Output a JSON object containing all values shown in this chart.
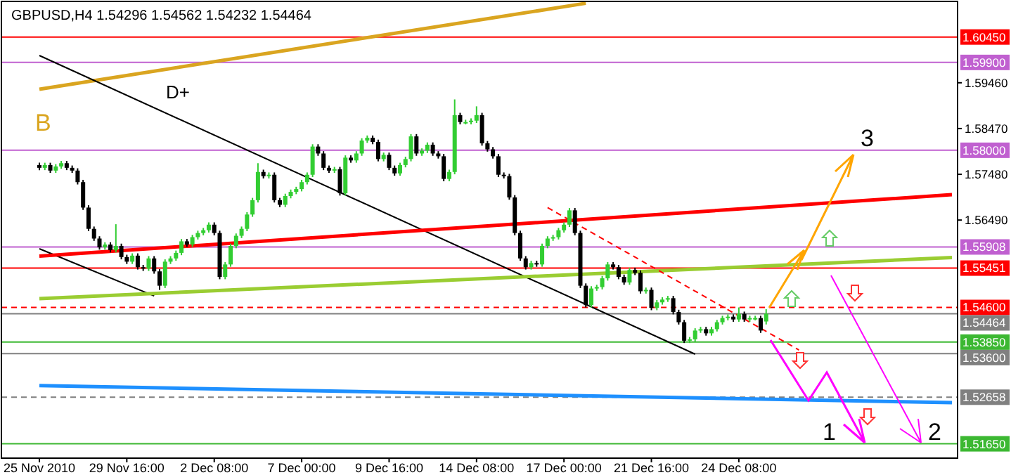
{
  "chart_data": {
    "type": "candlestick",
    "title": "GBPUSD,H4  1.54296 1.54562 1.54232 1.54464",
    "annotations": [
      "B",
      "D+",
      {
        "text": "3",
        "y": 1.58
      },
      {
        "text": "1",
        "y": 1.5165
      },
      {
        "text": "2",
        "y": 1.5165
      }
    ],
    "categories": [
      "25 Nov 2010",
      null,
      null,
      null,
      null,
      null,
      null,
      null,
      null,
      null,
      null,
      null,
      null,
      null,
      null,
      null,
      "29 Nov 16:00",
      null,
      null,
      null,
      null,
      null,
      null,
      null,
      null,
      null,
      null,
      null,
      null,
      null,
      null,
      null,
      "2 Dec 08:00",
      null,
      null,
      null,
      null,
      null,
      null,
      null,
      null,
      null,
      null,
      null,
      null,
      null,
      null,
      null,
      "7 Dec 00:00",
      null,
      null,
      null,
      null,
      null,
      null,
      null,
      null,
      null,
      null,
      null,
      null,
      null,
      null,
      null,
      "9 Dec 16:00",
      null,
      null,
      null,
      null,
      null,
      null,
      null,
      null,
      null,
      null,
      null,
      null,
      null,
      null,
      null,
      "14 Dec 08:00",
      null,
      null,
      null,
      null,
      null,
      null,
      null,
      null,
      null,
      null,
      null,
      null,
      null,
      null,
      null,
      "17 Dec 00:00",
      null,
      null,
      null,
      null,
      null,
      null,
      null,
      null,
      null,
      null,
      null,
      null,
      null,
      null,
      null,
      "21 Dec 16:00",
      null,
      null,
      null,
      null,
      null,
      null,
      null,
      null,
      null,
      null,
      null,
      null,
      null,
      null,
      null,
      "24 Dec 08:00",
      null,
      null,
      null,
      null,
      null,
      null,
      null,
      null,
      null,
      null,
      null,
      null,
      null,
      null,
      null,
      null,
      null,
      null,
      null,
      null,
      null,
      null,
      null,
      null,
      null,
      null,
      null,
      null,
      null,
      null,
      null,
      null,
      null,
      null,
      null,
      null,
      null,
      null,
      null
    ],
    "ohlc": [
      [
        1.5768,
        1.5773,
        1.5757,
        1.5762
      ],
      [
        1.5762,
        1.5773,
        1.5757,
        1.5768
      ],
      [
        1.5768,
        1.5773,
        1.5751,
        1.5756
      ],
      [
        1.5756,
        1.577,
        1.5751,
        1.5765
      ],
      [
        1.5765,
        1.5777,
        1.576,
        1.5772
      ],
      [
        1.5772,
        1.5777,
        1.5757,
        1.5762
      ],
      [
        1.5762,
        1.5767,
        1.5751,
        1.5756
      ],
      [
        1.5756,
        1.5761,
        1.5726,
        1.5731
      ],
      [
        1.5731,
        1.5736,
        1.5671,
        1.5676
      ],
      [
        1.5676,
        1.5681,
        1.5625,
        1.563
      ],
      [
        1.563,
        1.5635,
        1.5604,
        1.5609
      ],
      [
        1.5609,
        1.5614,
        1.5585,
        1.559
      ],
      [
        1.559,
        1.5601,
        1.5585,
        1.5596
      ],
      [
        1.5596,
        1.5601,
        1.5579,
        1.5584
      ],
      [
        1.5584,
        1.564,
        1.5579,
        1.5593
      ],
      [
        1.5593,
        1.5598,
        1.5564,
        1.5569
      ],
      [
        1.5569,
        1.5574,
        1.5554,
        1.5559
      ],
      [
        1.5559,
        1.5577,
        1.5554,
        1.5572
      ],
      [
        1.5572,
        1.5577,
        1.5542,
        1.5547
      ],
      [
        1.5547,
        1.5552,
        1.5539,
        1.5544
      ],
      [
        1.5544,
        1.5571,
        1.5539,
        1.5566
      ],
      [
        1.5566,
        1.5571,
        1.5533,
        1.5538
      ],
      [
        1.5538,
        1.5543,
        1.5498,
        1.5507
      ],
      [
        1.5507,
        1.5564,
        1.5502,
        1.5559
      ],
      [
        1.5559,
        1.5571,
        1.5554,
        1.5566
      ],
      [
        1.5566,
        1.5583,
        1.5561,
        1.5578
      ],
      [
        1.5578,
        1.5608,
        1.5573,
        1.5603
      ],
      [
        1.5603,
        1.5608,
        1.5591,
        1.5596
      ],
      [
        1.5596,
        1.5617,
        1.5591,
        1.5612
      ],
      [
        1.5612,
        1.5626,
        1.5607,
        1.5621
      ],
      [
        1.5621,
        1.5632,
        1.5616,
        1.5627
      ],
      [
        1.5627,
        1.5644,
        1.5622,
        1.5639
      ],
      [
        1.5639,
        1.5644,
        1.5616,
        1.5621
      ],
      [
        1.5621,
        1.5626,
        1.5521,
        1.5526
      ],
      [
        1.5526,
        1.5558,
        1.5521,
        1.5553
      ],
      [
        1.5553,
        1.5598,
        1.5548,
        1.5593
      ],
      [
        1.5593,
        1.562,
        1.5588,
        1.5615
      ],
      [
        1.5615,
        1.5635,
        1.561,
        1.563
      ],
      [
        1.563,
        1.5666,
        1.5625,
        1.5661
      ],
      [
        1.5661,
        1.5697,
        1.5656,
        1.5692
      ],
      [
        1.5692,
        1.5772,
        1.5687,
        1.5753
      ],
      [
        1.5753,
        1.5758,
        1.5739,
        1.5744
      ],
      [
        1.5744,
        1.5752,
        1.5739,
        1.5747
      ],
      [
        1.5747,
        1.5752,
        1.5687,
        1.5692
      ],
      [
        1.5692,
        1.5697,
        1.5677,
        1.5682
      ],
      [
        1.5682,
        1.5706,
        1.5677,
        1.5701
      ],
      [
        1.5701,
        1.5715,
        1.5696,
        1.571
      ],
      [
        1.571,
        1.5721,
        1.5705,
        1.5716
      ],
      [
        1.5716,
        1.5736,
        1.5711,
        1.5731
      ],
      [
        1.5731,
        1.5752,
        1.5726,
        1.5747
      ],
      [
        1.5747,
        1.5813,
        1.5742,
        1.5808
      ],
      [
        1.5808,
        1.5813,
        1.5788,
        1.5793
      ],
      [
        1.5793,
        1.5798,
        1.5757,
        1.5762
      ],
      [
        1.5762,
        1.5767,
        1.5751,
        1.5756
      ],
      [
        1.5756,
        1.5764,
        1.5751,
        1.5759
      ],
      [
        1.5759,
        1.5764,
        1.5702,
        1.5707
      ],
      [
        1.5707,
        1.5789,
        1.5702,
        1.5784
      ],
      [
        1.5784,
        1.5789,
        1.5773,
        1.5778
      ],
      [
        1.5778,
        1.5798,
        1.5773,
        1.5793
      ],
      [
        1.5793,
        1.5826,
        1.5788,
        1.5821
      ],
      [
        1.5821,
        1.5832,
        1.5816,
        1.5827
      ],
      [
        1.5827,
        1.5832,
        1.5813,
        1.5818
      ],
      [
        1.5818,
        1.5823,
        1.5776,
        1.5781
      ],
      [
        1.5781,
        1.5795,
        1.5776,
        1.579
      ],
      [
        1.579,
        1.5795,
        1.5757,
        1.5762
      ],
      [
        1.5762,
        1.5767,
        1.5745,
        1.575
      ],
      [
        1.575,
        1.5773,
        1.5745,
        1.5768
      ],
      [
        1.5768,
        1.5786,
        1.5763,
        1.5781
      ],
      [
        1.5781,
        1.5835,
        1.5776,
        1.583
      ],
      [
        1.583,
        1.5835,
        1.5788,
        1.5793
      ],
      [
        1.5793,
        1.5804,
        1.5788,
        1.5799
      ],
      [
        1.5799,
        1.5817,
        1.5794,
        1.5812
      ],
      [
        1.5812,
        1.5817,
        1.5788,
        1.5793
      ],
      [
        1.5793,
        1.5798,
        1.5782,
        1.5787
      ],
      [
        1.5787,
        1.5792,
        1.5733,
        1.5738
      ],
      [
        1.5738,
        1.5758,
        1.5733,
        1.5753
      ],
      [
        1.5753,
        1.591,
        1.5748,
        1.5876
      ],
      [
        1.5876,
        1.5881,
        1.5856,
        1.5861
      ],
      [
        1.5861,
        1.5866,
        1.5856,
        1.5861
      ],
      [
        1.5861,
        1.5869,
        1.5856,
        1.5864
      ],
      [
        1.5864,
        1.5895,
        1.5859,
        1.5876
      ],
      [
        1.5876,
        1.5881,
        1.581,
        1.5815
      ],
      [
        1.5815,
        1.582,
        1.5797,
        1.5802
      ],
      [
        1.5802,
        1.5807,
        1.5782,
        1.5787
      ],
      [
        1.5787,
        1.5792,
        1.5742,
        1.5747
      ],
      [
        1.5747,
        1.5752,
        1.5739,
        1.5744
      ],
      [
        1.5744,
        1.5749,
        1.5693,
        1.5698
      ],
      [
        1.5698,
        1.5703,
        1.5616,
        1.5621
      ],
      [
        1.5621,
        1.5626,
        1.5561,
        1.5566
      ],
      [
        1.5566,
        1.5571,
        1.5542,
        1.5547
      ],
      [
        1.5547,
        1.5561,
        1.5542,
        1.5556
      ],
      [
        1.5556,
        1.5561,
        1.5548,
        1.5553
      ],
      [
        1.5553,
        1.5598,
        1.5548,
        1.5593
      ],
      [
        1.5593,
        1.5614,
        1.5588,
        1.5609
      ],
      [
        1.5609,
        1.5617,
        1.5604,
        1.5612
      ],
      [
        1.5612,
        1.5632,
        1.5607,
        1.5627
      ],
      [
        1.5627,
        1.5644,
        1.5622,
        1.5639
      ],
      [
        1.5639,
        1.5675,
        1.5634,
        1.567
      ],
      [
        1.567,
        1.5675,
        1.5616,
        1.5621
      ],
      [
        1.5621,
        1.5626,
        1.5502,
        1.5507
      ],
      [
        1.5507,
        1.5512,
        1.546,
        1.5465
      ],
      [
        1.5465,
        1.5506,
        1.546,
        1.5501
      ],
      [
        1.5501,
        1.5509,
        1.5496,
        1.5504
      ],
      [
        1.5504,
        1.5528,
        1.5499,
        1.5523
      ],
      [
        1.5523,
        1.5558,
        1.5518,
        1.5553
      ],
      [
        1.5553,
        1.5558,
        1.5542,
        1.5547
      ],
      [
        1.5547,
        1.5552,
        1.5521,
        1.5526
      ],
      [
        1.5526,
        1.5531,
        1.5509,
        1.5514
      ],
      [
        1.5514,
        1.5546,
        1.5509,
        1.5541
      ],
      [
        1.5541,
        1.5546,
        1.553,
        1.5535
      ],
      [
        1.5535,
        1.554,
        1.549,
        1.5495
      ],
      [
        1.5495,
        1.5503,
        1.549,
        1.5498
      ],
      [
        1.5498,
        1.5503,
        1.5454,
        1.5459
      ],
      [
        1.5459,
        1.5476,
        1.5454,
        1.5471
      ],
      [
        1.5471,
        1.5482,
        1.5466,
        1.5477
      ],
      [
        1.5477,
        1.5485,
        1.5472,
        1.548
      ],
      [
        1.548,
        1.5485,
        1.5445,
        1.545
      ],
      [
        1.545,
        1.5455,
        1.5423,
        1.5428
      ],
      [
        1.5428,
        1.5433,
        1.5383,
        1.5388
      ],
      [
        1.5388,
        1.5396,
        1.5383,
        1.5391
      ],
      [
        1.5391,
        1.5415,
        1.5386,
        1.541
      ],
      [
        1.541,
        1.5418,
        1.5405,
        1.5413
      ],
      [
        1.5413,
        1.5418,
        1.5399,
        1.5404
      ],
      [
        1.5404,
        1.5418,
        1.5399,
        1.5413
      ],
      [
        1.5413,
        1.5433,
        1.5408,
        1.5428
      ],
      [
        1.5428,
        1.5442,
        1.5423,
        1.5437
      ],
      [
        1.5437,
        1.5445,
        1.5432,
        1.544
      ],
      [
        1.544,
        1.5445,
        1.5429,
        1.5434
      ],
      [
        1.5434,
        1.546,
        1.5429,
        1.5446
      ],
      [
        1.5446,
        1.5451,
        1.5429,
        1.5434
      ],
      [
        1.5434,
        1.5442,
        1.5429,
        1.5437
      ],
      [
        1.5437,
        1.5442,
        1.5432,
        1.5437
      ],
      [
        1.5437,
        1.5442,
        1.5405,
        1.541
      ],
      [
        1.54296,
        1.54562,
        1.54232,
        1.54464
      ],
      null,
      null,
      null,
      null,
      null,
      null,
      null,
      null,
      null,
      null,
      null,
      null,
      null,
      null,
      null,
      null,
      null,
      null,
      null,
      null,
      null,
      null,
      null,
      null,
      null,
      null,
      null,
      null,
      null,
      null,
      null,
      null,
      null,
      null
    ],
    "series": [
      {
        "type": "line",
        "color": "#daa520",
        "values": [
          1.5932,
          null,
          null,
          null,
          null,
          null,
          null,
          null,
          null,
          null,
          null,
          null,
          null,
          null,
          null,
          null,
          null,
          null,
          null,
          null,
          null,
          null,
          null,
          null,
          null,
          null,
          null,
          null,
          null,
          null,
          null,
          null,
          null,
          null,
          null,
          null,
          null,
          null,
          null,
          null,
          null,
          null,
          null,
          null,
          null,
          null,
          null,
          null,
          null,
          null,
          null,
          null,
          null,
          null,
          null,
          null,
          null,
          null,
          null,
          null,
          null,
          null,
          null,
          null,
          null,
          null,
          null,
          null,
          null,
          null,
          null,
          null,
          null,
          null,
          null,
          null,
          null,
          null,
          null,
          null,
          null,
          null,
          null,
          null,
          null,
          null,
          null,
          null,
          null,
          null,
          null,
          null,
          null,
          null,
          null,
          null,
          null,
          null,
          null,
          null,
          1.6118,
          null,
          null,
          null,
          null,
          null,
          null,
          null,
          null,
          null,
          null,
          null,
          null,
          null,
          null,
          null,
          null,
          null,
          null,
          null,
          null,
          null,
          null,
          null,
          null,
          null,
          null,
          null,
          null,
          null,
          null,
          null,
          null,
          null,
          null,
          null,
          null,
          null,
          null,
          null,
          null,
          null,
          null,
          null,
          null,
          null,
          null,
          null,
          null,
          null,
          null,
          null,
          null,
          null,
          null,
          null,
          null,
          null,
          null,
          null,
          null,
          null,
          null,
          null,
          null,
          null,
          null,
          null
        ]
      },
      {
        "type": "line",
        "color": "#000000",
        "values": [
          1.6005,
          null,
          null,
          null,
          null,
          null,
          null,
          null,
          null,
          null,
          null,
          null,
          null,
          null,
          null,
          null,
          null,
          null,
          null,
          null,
          null,
          null,
          null,
          null,
          null,
          null,
          null,
          null,
          null,
          null,
          null,
          null,
          null,
          null,
          null,
          null,
          null,
          null,
          null,
          null,
          null,
          null,
          null,
          null,
          null,
          null,
          null,
          null,
          null,
          null,
          null,
          null,
          null,
          null,
          null,
          null,
          null,
          null,
          null,
          null,
          null,
          null,
          null,
          null,
          null,
          null,
          null,
          null,
          null,
          null,
          null,
          null,
          null,
          null,
          null,
          null,
          null,
          null,
          null,
          null,
          null,
          null,
          null,
          null,
          null,
          null,
          null,
          null,
          null,
          null,
          null,
          null,
          null,
          null,
          null,
          null,
          null,
          null,
          null,
          null,
          null,
          null,
          null,
          null,
          null,
          null,
          null,
          null,
          null,
          null,
          null,
          null,
          null,
          null,
          null,
          null,
          null,
          null,
          null,
          null,
          1.5359,
          null,
          null,
          null,
          null,
          null,
          null,
          null,
          null,
          null,
          null,
          null,
          null,
          null,
          null,
          null,
          null,
          null,
          null,
          null,
          null,
          null,
          null,
          null,
          null,
          null,
          null,
          null,
          null,
          null,
          null,
          null,
          null,
          null,
          null,
          null,
          null,
          null,
          null,
          null,
          null,
          null,
          null,
          null,
          null,
          null,
          null,
          null
        ]
      },
      {
        "type": "line",
        "color": "#000000",
        "values": [
          1.5587,
          null,
          null,
          null,
          null,
          null,
          null,
          null,
          null,
          null,
          null,
          null,
          null,
          null,
          null,
          null,
          null,
          null,
          null,
          null,
          null,
          1.5485,
          null,
          null,
          null,
          null,
          null,
          null,
          null,
          null,
          null,
          null,
          null,
          null,
          null,
          null,
          null,
          null,
          null,
          null,
          null,
          null,
          null,
          null,
          null,
          null,
          null,
          null,
          null,
          null,
          null,
          null,
          null,
          null,
          null,
          null,
          null,
          null,
          null,
          null,
          null,
          null,
          null,
          null,
          null,
          null,
          null,
          null,
          null,
          null,
          null,
          null,
          null,
          null,
          null,
          null,
          null,
          null,
          null,
          null,
          null,
          null,
          null,
          null,
          null,
          null,
          null,
          null,
          null,
          null,
          null,
          null,
          null,
          null,
          null,
          null,
          null,
          null,
          null,
          null,
          null,
          null,
          null,
          null,
          null,
          null,
          null,
          null,
          null,
          null,
          null,
          null,
          null,
          null,
          null,
          null,
          null,
          null,
          null,
          null,
          null,
          null,
          null,
          null,
          null,
          null,
          null,
          null,
          null,
          null,
          null,
          null,
          null,
          null,
          null,
          null,
          null,
          null,
          null,
          null,
          null,
          null,
          null,
          null,
          null,
          null,
          null,
          null,
          null,
          null,
          null,
          null,
          null,
          null,
          null,
          null,
          null,
          null,
          null,
          null,
          null,
          null,
          null,
          null,
          null,
          null,
          null,
          null
        ]
      },
      {
        "type": "line",
        "color": "#ff0000",
        "values": [
          1.5571,
          null,
          null,
          null,
          null,
          null,
          null,
          null,
          null,
          null,
          null,
          null,
          null,
          null,
          null,
          null,
          null,
          null,
          null,
          null,
          null,
          null,
          null,
          null,
          null,
          null,
          null,
          null,
          null,
          null,
          null,
          null,
          null,
          null,
          null,
          null,
          null,
          null,
          null,
          null,
          null,
          null,
          null,
          null,
          null,
          null,
          null,
          null,
          null,
          null,
          null,
          null,
          null,
          null,
          null,
          null,
          null,
          null,
          null,
          null,
          null,
          null,
          null,
          null,
          null,
          null,
          null,
          null,
          null,
          null,
          null,
          null,
          null,
          null,
          null,
          null,
          null,
          null,
          null,
          null,
          null,
          null,
          null,
          null,
          null,
          null,
          null,
          null,
          null,
          null,
          null,
          null,
          null,
          null,
          null,
          null,
          null,
          null,
          null,
          null,
          null,
          null,
          null,
          null,
          null,
          null,
          null,
          null,
          null,
          null,
          null,
          null,
          null,
          null,
          null,
          null,
          null,
          null,
          null,
          null,
          null,
          null,
          null,
          null,
          null,
          null,
          null,
          null,
          null,
          null,
          null,
          null,
          null,
          null,
          null,
          null,
          null,
          null,
          null,
          null,
          null,
          null,
          null,
          null,
          null,
          null,
          null,
          null,
          null,
          null,
          null,
          null,
          null,
          null,
          null,
          null,
          null,
          null,
          null,
          null,
          null,
          null,
          null,
          null,
          null,
          null,
          null,
          1.5704
        ]
      },
      {
        "type": "line",
        "color": "#9acd32",
        "values": [
          1.5479,
          null,
          null,
          null,
          null,
          null,
          null,
          null,
          null,
          null,
          null,
          null,
          null,
          null,
          null,
          null,
          null,
          null,
          null,
          null,
          null,
          null,
          null,
          null,
          null,
          null,
          null,
          null,
          null,
          null,
          null,
          null,
          null,
          null,
          null,
          null,
          null,
          null,
          null,
          null,
          null,
          null,
          null,
          null,
          null,
          null,
          null,
          null,
          null,
          null,
          null,
          null,
          null,
          null,
          null,
          null,
          null,
          null,
          null,
          null,
          null,
          null,
          null,
          null,
          null,
          null,
          null,
          null,
          null,
          null,
          null,
          null,
          null,
          null,
          null,
          null,
          null,
          null,
          null,
          null,
          null,
          null,
          null,
          null,
          null,
          null,
          null,
          null,
          null,
          null,
          null,
          null,
          null,
          null,
          null,
          null,
          null,
          null,
          null,
          null,
          null,
          null,
          null,
          null,
          null,
          null,
          null,
          null,
          null,
          null,
          null,
          null,
          null,
          null,
          null,
          null,
          null,
          null,
          null,
          null,
          null,
          null,
          null,
          null,
          null,
          null,
          null,
          null,
          null,
          null,
          null,
          null,
          null,
          null,
          null,
          null,
          null,
          null,
          null,
          null,
          null,
          null,
          null,
          null,
          null,
          null,
          null,
          null,
          null,
          null,
          null,
          null,
          null,
          null,
          null,
          null,
          null,
          null,
          null,
          null,
          null,
          null,
          null,
          null,
          null,
          null,
          null,
          1.5568
        ]
      },
      {
        "type": "line",
        "color": "#1e90ff",
        "values": [
          1.5291,
          null,
          null,
          null,
          null,
          null,
          null,
          null,
          null,
          null,
          null,
          null,
          null,
          null,
          null,
          null,
          null,
          null,
          null,
          null,
          null,
          null,
          null,
          null,
          null,
          null,
          null,
          null,
          null,
          null,
          null,
          null,
          null,
          null,
          null,
          null,
          null,
          null,
          null,
          null,
          null,
          null,
          null,
          null,
          null,
          null,
          null,
          null,
          null,
          null,
          null,
          null,
          null,
          null,
          null,
          null,
          null,
          null,
          null,
          null,
          null,
          null,
          null,
          null,
          null,
          null,
          null,
          null,
          null,
          null,
          null,
          null,
          null,
          null,
          null,
          null,
          null,
          null,
          null,
          null,
          null,
          null,
          null,
          null,
          null,
          null,
          null,
          null,
          null,
          null,
          null,
          null,
          null,
          null,
          null,
          null,
          null,
          null,
          null,
          null,
          null,
          null,
          null,
          null,
          null,
          null,
          null,
          null,
          null,
          null,
          null,
          null,
          null,
          null,
          null,
          null,
          null,
          null,
          null,
          null,
          null,
          null,
          null,
          null,
          null,
          null,
          null,
          null,
          null,
          null,
          null,
          null,
          null,
          null,
          null,
          null,
          null,
          null,
          null,
          null,
          null,
          null,
          null,
          null,
          null,
          null,
          null,
          null,
          null,
          null,
          null,
          null,
          null,
          null,
          null,
          null,
          null,
          null,
          null,
          null,
          null,
          null,
          null,
          null,
          null,
          null,
          null,
          1.5254
        ]
      },
      {
        "type": "line",
        "color": "#ff0000",
        "line_style": "dashed",
        "values": [
          null,
          null,
          null,
          null,
          null,
          null,
          null,
          null,
          null,
          null,
          null,
          null,
          null,
          null,
          null,
          null,
          null,
          null,
          null,
          null,
          null,
          null,
          null,
          null,
          null,
          null,
          null,
          null,
          null,
          null,
          null,
          null,
          null,
          null,
          null,
          null,
          null,
          null,
          null,
          null,
          null,
          null,
          null,
          null,
          null,
          null,
          null,
          null,
          null,
          null,
          null,
          null,
          null,
          null,
          null,
          null,
          null,
          null,
          null,
          null,
          null,
          null,
          null,
          null,
          null,
          null,
          null,
          null,
          null,
          null,
          null,
          null,
          null,
          null,
          null,
          null,
          null,
          null,
          null,
          null,
          null,
          null,
          null,
          null,
          null,
          null,
          null,
          null,
          null,
          null,
          null,
          null,
          null,
          1.5676,
          null,
          null,
          null,
          null,
          null,
          null,
          null,
          null,
          null,
          null,
          null,
          null,
          null,
          null,
          null,
          null,
          null,
          null,
          null,
          null,
          null,
          null,
          null,
          null,
          null,
          null,
          null,
          null,
          null,
          null,
          null,
          null,
          null,
          null,
          null,
          null,
          null,
          null,
          null,
          null,
          null,
          null,
          null,
          null,
          null,
          1.5368,
          null,
          null,
          null,
          null,
          null,
          null,
          null,
          null,
          null,
          null,
          null,
          null,
          null,
          null,
          null,
          null,
          null,
          null,
          null,
          null,
          null,
          null,
          null,
          null,
          null,
          null,
          null,
          null
        ]
      }
    ],
    "ylim": [
      1.5134,
      1.6122
    ],
    "yticks": [
      {
        "value": 1.5946,
        "label": "1.59460"
      },
      {
        "value": 1.5847,
        "label": "1.58470"
      },
      {
        "value": 1.5748,
        "label": "1.57480"
      },
      {
        "value": 1.5649,
        "label": "1.56490"
      }
    ],
    "ref_lines": [
      {
        "axis": "y",
        "value": 1.6045,
        "label": "1.60450",
        "color": "#ff0000"
      },
      {
        "axis": "y",
        "value": 1.599,
        "label": "1.59900",
        "color": "#c060d0"
      },
      {
        "axis": "y",
        "value": 1.58,
        "label": "1.58000",
        "color": "#c060d0"
      },
      {
        "axis": "y",
        "value": 1.55908,
        "label": "1.55908",
        "color": "#c060d0"
      },
      {
        "axis": "y",
        "value": 1.55451,
        "label": "1.55451",
        "color": "#ff0000"
      },
      {
        "axis": "y",
        "value": 1.546,
        "label": "1.54600",
        "color": "#ff0000",
        "line_style": "dashed"
      },
      {
        "axis": "y",
        "value": 1.54464,
        "label": "1.54464",
        "color": "#808080"
      },
      {
        "axis": "y",
        "value": 1.5385,
        "label": "1.53850",
        "color": "#3cb832"
      },
      {
        "axis": "y",
        "value": 1.536,
        "label": "1.53600",
        "color": "#808080"
      },
      {
        "axis": "y",
        "value": 1.52658,
        "label": "1.52658",
        "color": "#808080",
        "line_style": "dashed"
      },
      {
        "axis": "y",
        "value": 1.5165,
        "label": "1.51650",
        "color": "#3cb832"
      }
    ]
  }
}
